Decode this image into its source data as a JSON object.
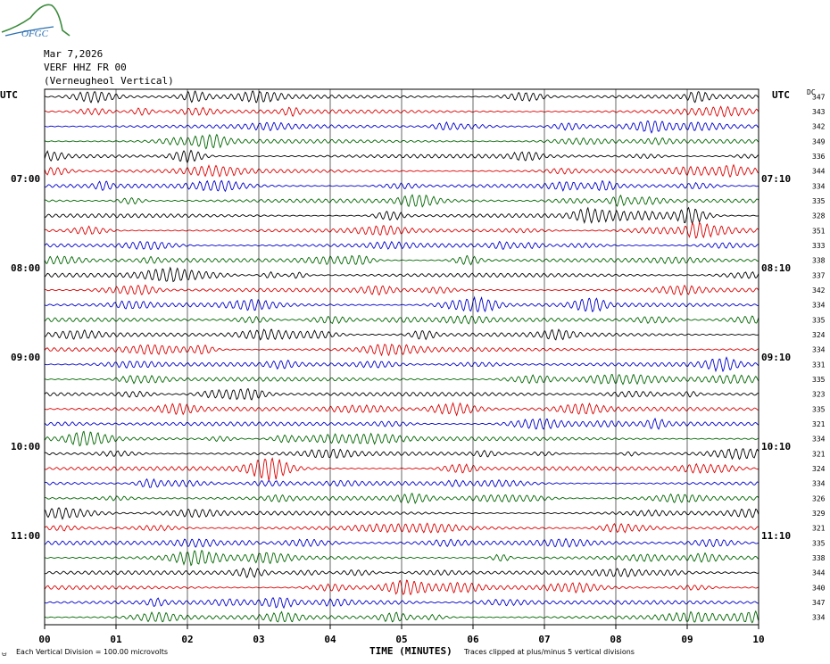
{
  "logo": {
    "text": "OFGC",
    "color": "#2a6fb0",
    "mountain_color": "#3a8a3a"
  },
  "header": {
    "date": "Mar 7,2026",
    "station": "VERF HHZ FR 00",
    "location": "(Verneugheol Vertical)"
  },
  "labels": {
    "utc_left": "UTC",
    "utc_right": "UTC",
    "dc": "DC",
    "x_axis_title": "TIME (MINUTES)",
    "scale_note": "Each Vertical Division =  100.00 microvolts",
    "clip_note": "Traces clipped at plus/minus 5 vertical divisions",
    "corner_mark": "⩁"
  },
  "colors": {
    "cycle": [
      "#000000",
      "#dd0000",
      "#0000cc",
      "#006600"
    ],
    "grid": "#000000"
  },
  "chart_data": {
    "type": "line",
    "title": "Mar 7,2026 VERF HHZ FR 00 (Verneugheol Vertical)",
    "xlabel": "TIME (MINUTES)",
    "x_ticks": [
      "00",
      "01",
      "02",
      "03",
      "04",
      "05",
      "06",
      "07",
      "08",
      "09",
      "10"
    ],
    "xlim": [
      0,
      10
    ],
    "rows_per_hour": 6,
    "left_time_labels": [
      "07:00",
      "08:00",
      "09:00",
      "10:00",
      "11:00"
    ],
    "left_time_label_rows": [
      6,
      12,
      18,
      24,
      30
    ],
    "right_time_labels": [
      "07:10",
      "08:10",
      "09:10",
      "10:10",
      "11:10"
    ],
    "right_time_label_rows": [
      6,
      12,
      18,
      24,
      30
    ],
    "dc_offsets": [
      347,
      343,
      342,
      349,
      336,
      344,
      334,
      335,
      328,
      351,
      333,
      338,
      337,
      342,
      334,
      335,
      324,
      334,
      331,
      335,
      323,
      335,
      321,
      334,
      321,
      324,
      334,
      326,
      329,
      321,
      335,
      338,
      344,
      340,
      347,
      334
    ],
    "vertical_division_microvolts": 100.0,
    "clip_divisions": 5,
    "grid": true
  }
}
